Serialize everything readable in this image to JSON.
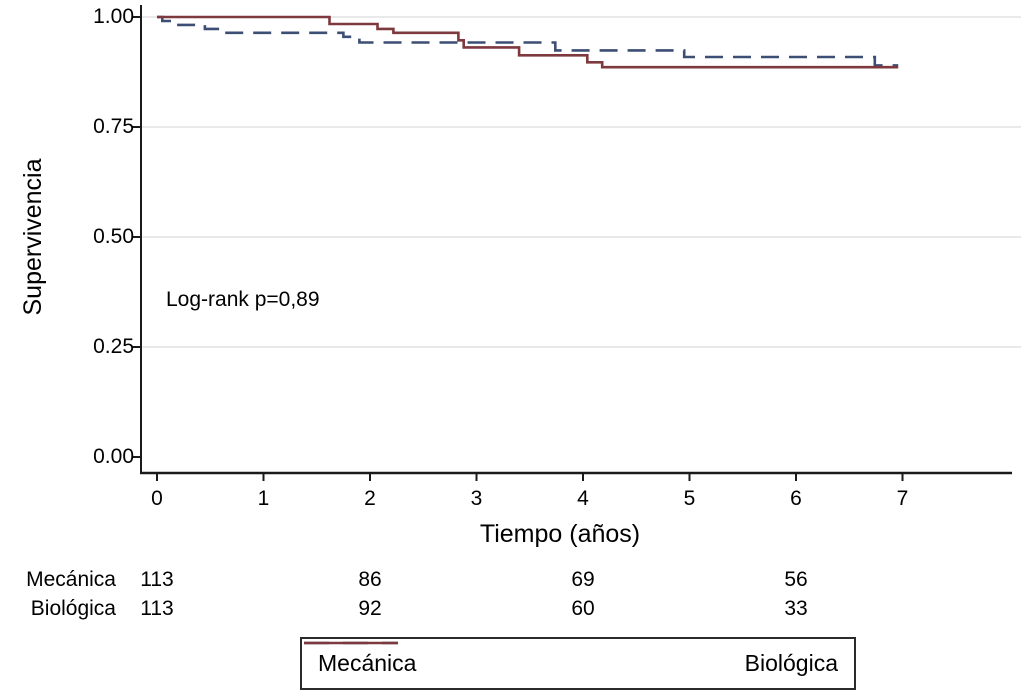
{
  "figure": {
    "background": "#ffffff",
    "axis_color": "#1a1a1a",
    "grid_color": "#e2e2e2",
    "legend_border_color": "#2b2b2b"
  },
  "chart_data": {
    "type": "line",
    "variant": "kaplan-meier-step",
    "title": "",
    "xlabel": "Tiempo (años)",
    "ylabel": "Supervivencia",
    "annotation": "Log-rank p=0,89",
    "xlim": [
      0,
      8
    ],
    "ylim": [
      0,
      1
    ],
    "grid": "horizontal",
    "legend_position": "bottom-box",
    "xticks": [
      {
        "value": 0,
        "label": "0"
      },
      {
        "value": 1,
        "label": "1"
      },
      {
        "value": 2,
        "label": "2"
      },
      {
        "value": 3,
        "label": "3"
      },
      {
        "value": 4,
        "label": "4"
      },
      {
        "value": 5,
        "label": "5"
      },
      {
        "value": 6,
        "label": "6"
      },
      {
        "value": 7,
        "label": "7"
      }
    ],
    "yticks": [
      {
        "value": 1.0,
        "label": "1.00"
      },
      {
        "value": 0.75,
        "label": "0.75"
      },
      {
        "value": 0.5,
        "label": "0.50"
      },
      {
        "value": 0.25,
        "label": "0.25"
      },
      {
        "value": 0.0,
        "label": "0.00"
      }
    ],
    "series": [
      {
        "name": "Mecánica",
        "style": "dashed",
        "color": "#3d4e74",
        "end_time": 6.96,
        "steps": [
          [
            0,
            1.0
          ],
          [
            0.05,
            0.991
          ],
          [
            0.15,
            0.982
          ],
          [
            0.45,
            0.973
          ],
          [
            0.6,
            0.964
          ],
          [
            1.75,
            0.955
          ],
          [
            1.9,
            0.942
          ],
          [
            3.74,
            0.924
          ],
          [
            4.95,
            0.909
          ],
          [
            6.74,
            0.89
          ]
        ]
      },
      {
        "name": "Biológica",
        "style": "solid",
        "color": "#7d393d",
        "end_time": 6.96,
        "steps": [
          [
            0,
            1.0
          ],
          [
            1.62,
            0.984
          ],
          [
            2.07,
            0.973
          ],
          [
            2.22,
            0.964
          ],
          [
            2.83,
            0.947
          ],
          [
            2.88,
            0.931
          ],
          [
            3.4,
            0.913
          ],
          [
            4.04,
            0.897
          ],
          [
            4.18,
            0.886
          ]
        ]
      }
    ],
    "risk_table": {
      "times": [
        0,
        2,
        4,
        6
      ],
      "rows": [
        {
          "name": "Mecánica",
          "counts": [
            "113",
            "86",
            "69",
            "56"
          ]
        },
        {
          "name": "Biológica",
          "counts": [
            "113",
            "92",
            "60",
            "33"
          ]
        }
      ]
    }
  }
}
